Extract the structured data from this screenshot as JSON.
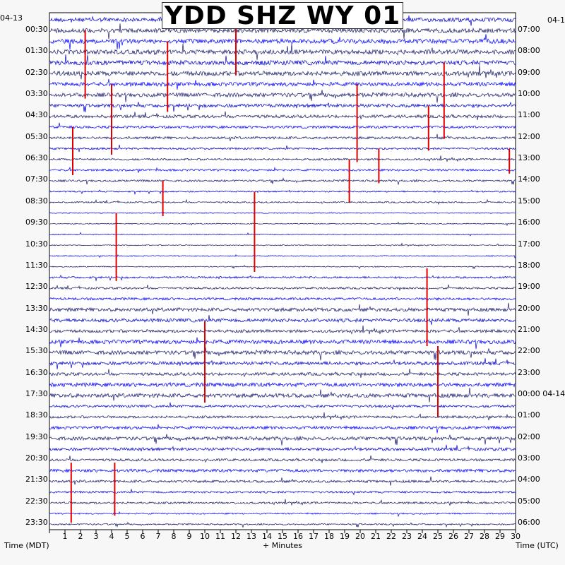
{
  "chart_data": {
    "type": "line",
    "title": "YDD SHZ WY 01",
    "left_date": "04-13",
    "right_date_top": "04-1",
    "right_date_switch": "04-14",
    "left_axis_label": "Time (MDT)",
    "bottom_axis_label": "+ Minutes",
    "right_axis_label": "Time (UTC)",
    "x_ticks": [
      "1",
      "2",
      "3",
      "4",
      "5",
      "6",
      "7",
      "8",
      "9",
      "10",
      "11",
      "12",
      "13",
      "14",
      "15",
      "16",
      "17",
      "18",
      "19",
      "20",
      "21",
      "22",
      "23",
      "24",
      "25",
      "26",
      "27",
      "28",
      "29",
      "30"
    ],
    "xlim": [
      0,
      30
    ],
    "left_time_labels": [
      "00:30",
      "01:30",
      "02:30",
      "03:30",
      "04:30",
      "05:30",
      "06:30",
      "07:30",
      "08:30",
      "09:30",
      "10:30",
      "11:30",
      "12:30",
      "13:30",
      "14:30",
      "15:30",
      "16:30",
      "17:30",
      "18:30",
      "19:30",
      "20:30",
      "21:30",
      "22:30",
      "23:30"
    ],
    "right_time_labels": [
      "07:00",
      "08:00",
      "09:00",
      "10:00",
      "11:00",
      "12:00",
      "13:00",
      "14:00",
      "15:00",
      "16:00",
      "17:00",
      "18:00",
      "19:00",
      "20:00",
      "21:00",
      "22:00",
      "23:00",
      "00:00",
      "01:00",
      "02:00",
      "03:00",
      "04:00",
      "05:00",
      "06:00"
    ],
    "trace_count": 48,
    "trace_colors": [
      "#0000cc",
      "#1a1a66",
      "#0000ff",
      "#191970"
    ],
    "clip_color": "#e00000",
    "gridlines": "dotted",
    "activity_profile": [
      8,
      9,
      9,
      9,
      9,
      9,
      8,
      8,
      7,
      6,
      5,
      5,
      4,
      4,
      4,
      4,
      3,
      3,
      2,
      2,
      2,
      2,
      2,
      2,
      4,
      4,
      5,
      7,
      7,
      6,
      8,
      8,
      7,
      6,
      8,
      8,
      5,
      5,
      6,
      7,
      6,
      5,
      6,
      5,
      4,
      4,
      3,
      3
    ]
  }
}
